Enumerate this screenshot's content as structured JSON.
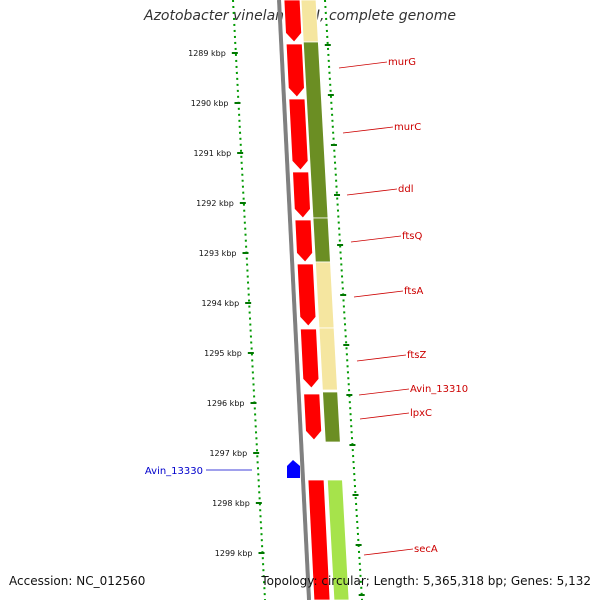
{
  "title": "Azotobacter vinelandii DJ, complete genome",
  "accession": "Accession: NC_012560",
  "summary": "Topology: circular; Length: 5,365,318 bp; Genes: 5,132",
  "colors": {
    "backbone": "#808080",
    "forward_cds": "#ff0000",
    "reverse_cds": "#0000ff",
    "tick": "#007700",
    "dots": "#009900",
    "olive": "#6b8e23",
    "pale": "#f5e6a0",
    "lime": "#a6e34b",
    "forward_label": "#cc0000",
    "reverse_label": "#0000cc"
  },
  "scale_ticks": [
    "1289 kbp",
    "1290 kbp",
    "1291 kbp",
    "1292 kbp",
    "1293 kbp",
    "1294 kbp",
    "1295 kbp",
    "1296 kbp",
    "1297 kbp",
    "1298 kbp",
    "1299 kbp"
  ],
  "forward_genes": [
    "murG",
    "murC",
    "ddl",
    "ftsQ",
    "ftsA",
    "ftsZ",
    "Avin_13310",
    "lpxC",
    "secA"
  ],
  "reverse_genes": [
    "Avin_13330"
  ]
}
